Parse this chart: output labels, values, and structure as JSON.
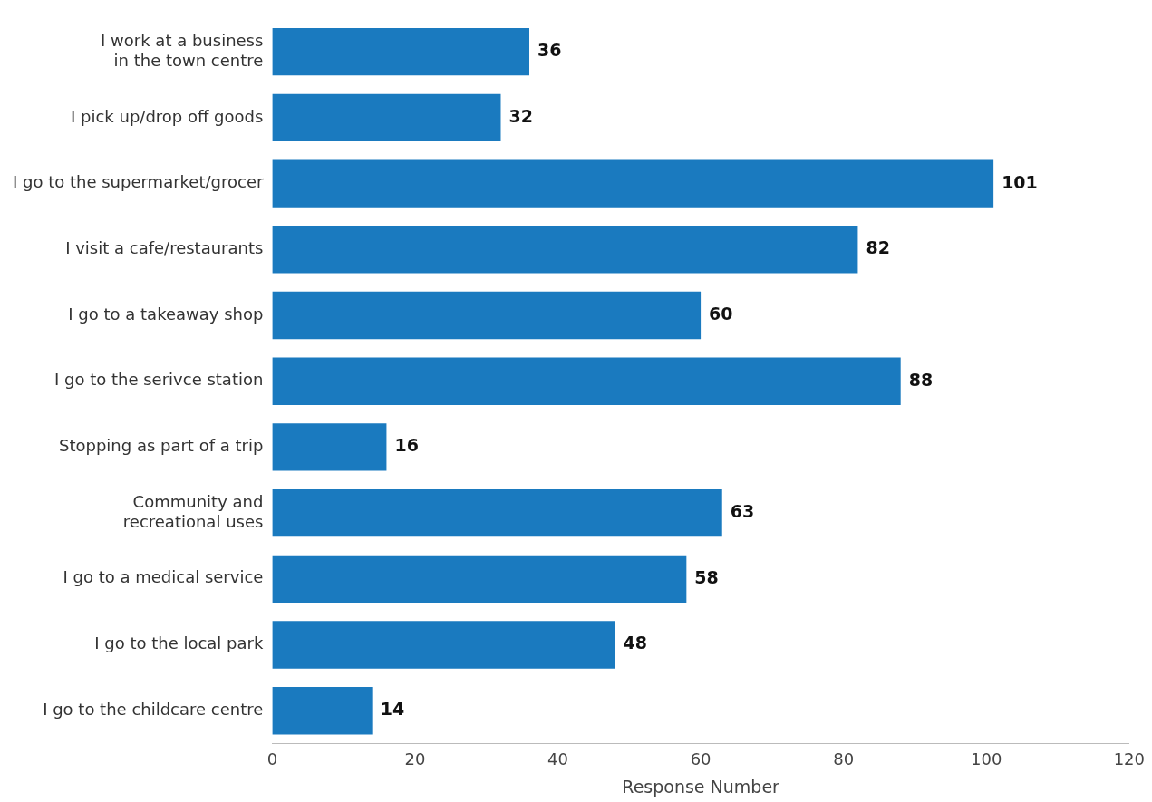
{
  "chart_data": {
    "type": "bar",
    "orientation": "horizontal",
    "xlabel": "Response Number",
    "categories": [
      "I work at a business\nin the town centre",
      "I pick up/drop off goods",
      "I go to the supermarket/grocer",
      "I visit a cafe/restaurants",
      "I go to a takeaway shop",
      "I go to the serivce station",
      "Stopping as part of a trip",
      "Community and\nrecreational uses",
      "I go to a medical service",
      "I go to the local park",
      "I go to the childcare centre"
    ],
    "values": [
      36,
      32,
      101,
      82,
      60,
      88,
      16,
      63,
      58,
      48,
      14
    ],
    "color": "#1a7abf",
    "xlim": [
      0,
      120
    ],
    "xticks": [
      0,
      20,
      40,
      60,
      80,
      100,
      120
    ],
    "data_labels": true,
    "grid": false,
    "legend": false
  }
}
